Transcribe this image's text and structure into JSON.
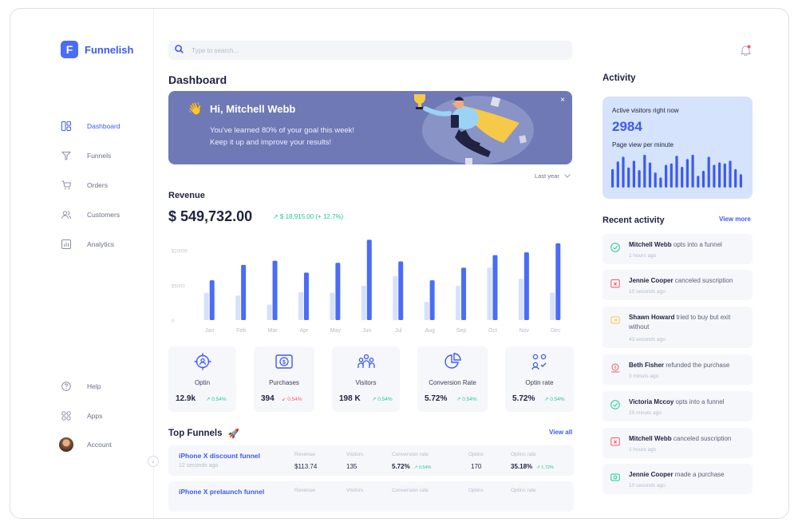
{
  "brand": {
    "logo_letter": "F",
    "name": "Funnelish",
    "accent": "#3d5af1"
  },
  "sidebar": {
    "items": [
      {
        "label": "Dashboard",
        "icon": "dashboard-icon",
        "active": true
      },
      {
        "label": "Funnels",
        "icon": "funnel-icon"
      },
      {
        "label": "Orders",
        "icon": "cart-icon"
      },
      {
        "label": "Customers",
        "icon": "users-icon"
      },
      {
        "label": "Analytics",
        "icon": "analytics-icon"
      }
    ],
    "bottom": [
      {
        "label": "Help",
        "icon": "help-icon"
      },
      {
        "label": "Apps",
        "icon": "apps-icon"
      },
      {
        "label": "Account",
        "icon": "avatar"
      }
    ]
  },
  "search": {
    "placeholder": "Type to search..."
  },
  "main": {
    "title": "Dashboard",
    "banner": {
      "greeting": "Hi, Mitchell Webb",
      "line1": "You've learned 80% of your goal this week!",
      "line2": "Keep it up and improve your results!",
      "close": "×"
    },
    "period": "Last year",
    "revenue_label": "Revenue",
    "revenue_value": "$ 549,732.00",
    "revenue_delta": "↗ $ 18,915.00 (+ 12.7%)"
  },
  "chart_data": {
    "type": "bar",
    "categories": [
      "Jan",
      "Feb",
      "Mar",
      "Apr",
      "May",
      "Jun",
      "Jul",
      "Aug",
      "Sep",
      "Oct",
      "Nov",
      "Dec"
    ],
    "y_tick_labels": [
      "$10000",
      "$5000",
      "0"
    ],
    "y_ticks": [
      10000,
      5000,
      0
    ],
    "ylim": [
      0,
      12000
    ],
    "series": [
      {
        "values": [
          3900,
          3500,
          2200,
          4000,
          3900,
          4900,
          6300,
          2600,
          4900,
          7500,
          5900,
          3900
        ],
        "color": "#d6e2fb"
      },
      {
        "values": [
          5700,
          7900,
          8500,
          6800,
          8200,
          11500,
          8400,
          5700,
          7500,
          9300,
          9700,
          11000
        ],
        "color": "#4a6cf7"
      }
    ],
    "grid": false
  },
  "stats": [
    {
      "name": "Optin",
      "value": "12.9k",
      "change": "↗ 0.54%",
      "trend": "up",
      "icon": "target-user-icon"
    },
    {
      "name": "Purchases",
      "value": "394",
      "change": "↙ 0.54%",
      "trend": "down",
      "icon": "dollar-card-icon"
    },
    {
      "name": "Visitors",
      "value": "198 K",
      "change": "↗ 0.54%",
      "trend": "up",
      "icon": "group-icon"
    },
    {
      "name": "Conversion Rate",
      "value": "5.72%",
      "change": "↗ 0.54%",
      "trend": "up",
      "icon": "pie-icon"
    },
    {
      "name": "Optin rate",
      "value": "5.72%",
      "change": "↗ 0.54%",
      "trend": "up",
      "icon": "optin-users-icon"
    }
  ],
  "top_funnels": {
    "title": "Top Funnels",
    "emoji": "🚀",
    "view_all": "View all",
    "headers": {
      "revenue": "Revenue",
      "visitors": "Visitors",
      "conversion": "Conversion rate",
      "optins": "Optins",
      "optins_rate": "Optins rate"
    },
    "rows": [
      {
        "name": "iPhone X discount funnel",
        "time": "12 seconds ago",
        "revenue": "$113.74",
        "visitors": "135",
        "conversion": "5.72%",
        "conversion_delta": "↗ 0.54%",
        "optins": "170",
        "optins_rate": "35.18%",
        "optins_rate_delta": "↗ 1.72%"
      },
      {
        "name": "iPhone X prelaunch funnel",
        "time": "",
        "revenue": "",
        "visitors": "",
        "conversion": "",
        "conversion_delta": "",
        "optins": "",
        "optins_rate": "",
        "optins_rate_delta": ""
      }
    ]
  },
  "activity": {
    "title": "Activity",
    "visitors_label": "Active visitors right now",
    "visitors_count": "2984",
    "pageview_label": "Page view per minute",
    "pageview_bars": [
      0.55,
      0.78,
      0.92,
      0.6,
      0.8,
      0.52,
      0.98,
      0.75,
      0.45,
      0.3,
      0.68,
      0.72,
      0.95,
      0.62,
      0.85,
      0.98,
      0.35,
      0.5,
      0.92,
      0.68,
      0.75,
      0.72,
      0.8,
      0.55,
      0.4
    ],
    "recent_title": "Recent activity",
    "view_more": "View more",
    "items": [
      {
        "name": "Mitchell Webb",
        "text": " opts into a funnel",
        "time": "1 hours ago",
        "icon": "optin-icon",
        "color": "#20c997"
      },
      {
        "name": "Jennie Cooper",
        "text": " canceled suscription",
        "time": "10 seconds ago",
        "icon": "cancel-icon",
        "color": "#f25961"
      },
      {
        "name": "Shawn Howard",
        "text": " tried to buy but exit without",
        "time": "43 seconds ago",
        "icon": "cart-exit-icon",
        "color": "#f7c948"
      },
      {
        "name": "Beth Fisher",
        "text": " refunded the purchase",
        "time": "3 minuts ago",
        "icon": "refund-icon",
        "color": "#f25961"
      },
      {
        "name": "Victoria Mccoy",
        "text": " opts into a funnel",
        "time": "25 minuts ago",
        "icon": "optin-icon",
        "color": "#20c997"
      },
      {
        "name": "Mitchell Webb",
        "text": " canceled suscription",
        "time": "1 hours ago",
        "icon": "cancel-icon",
        "color": "#f25961"
      },
      {
        "name": "Jennie Cooper",
        "text": " made a purchase",
        "time": "10 seconds ago",
        "icon": "purchase-icon",
        "color": "#20c997"
      }
    ]
  }
}
